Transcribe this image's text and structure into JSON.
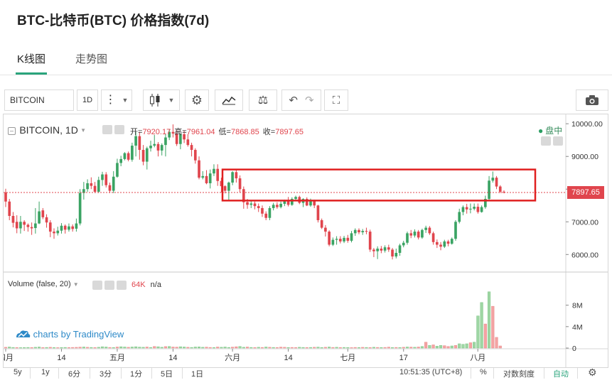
{
  "page": {
    "title": "BTC-比特币(BTC) 价格指数(7d)"
  },
  "tabs": [
    {
      "label": "K线图",
      "active": true
    },
    {
      "label": "走势图",
      "active": false
    }
  ],
  "toolbar": {
    "symbol": "BITCOIN",
    "interval": "1D"
  },
  "legend": {
    "symbol": "BITCOIN, 1D",
    "open_label": "开=",
    "open_value": "7920.17",
    "high_label": "高=",
    "high_value": "7961.04",
    "low_label": "低=",
    "low_value": "7868.85",
    "close_label": "收=",
    "close_value": "7897.65",
    "market_status": "盘中",
    "volume_label": "Volume (false, 20)",
    "volume_value": "64K",
    "volume_extra": "n/a"
  },
  "watermark": "charts by TradingView",
  "price_tag": "7897.65",
  "y_ticks": [
    "10000.00",
    "9000.00",
    "8000.00",
    "7000.00",
    "6000.00"
  ],
  "volume_ticks": [
    "8M",
    "4M",
    "0"
  ],
  "x_ticks": [
    "四月",
    "14",
    "五月",
    "14",
    "六月",
    "14",
    "七月",
    "17",
    "八月"
  ],
  "bottom_bar": {
    "ranges": [
      "5y",
      "1y",
      "6分",
      "3分",
      "1分",
      "5日",
      "1日"
    ],
    "time": "10:51:35 (UTC+8)",
    "percent": "%",
    "log_label": "对数刻度",
    "auto_label": "自动"
  },
  "colors": {
    "up": "#3aa363",
    "down": "#e0454d",
    "volume_up": "#9fd6a4",
    "volume_down": "#f4a3a3",
    "highlight": "#e02020",
    "accent": "#2aa47c"
  },
  "chart_data": {
    "type": "candlestick",
    "y_range": [
      5550,
      10200
    ],
    "candles": [
      [
        7900,
        7620,
        8010,
        7450
      ],
      [
        7620,
        7180,
        7700,
        7050
      ],
      [
        7180,
        6970,
        7300,
        6830
      ],
      [
        7000,
        6800,
        7200,
        6650
      ],
      [
        6800,
        7000,
        7180,
        6640
      ],
      [
        7000,
        6910,
        7050,
        6720
      ],
      [
        6910,
        6840,
        6950,
        6700
      ],
      [
        6840,
        6800,
        6980,
        6600
      ],
      [
        6810,
        6950,
        7420,
        6640
      ],
      [
        6950,
        7320,
        7620,
        6930
      ],
      [
        7350,
        7140,
        7420,
        7080
      ],
      [
        7140,
        6980,
        7230,
        6820
      ],
      [
        6980,
        6700,
        7050,
        6530
      ],
      [
        6700,
        6650,
        6800,
        6480
      ],
      [
        6650,
        6730,
        6850,
        6580
      ],
      [
        6730,
        6880,
        6960,
        6640
      ],
      [
        6880,
        6760,
        6920,
        6640
      ],
      [
        6760,
        6860,
        6950,
        6700
      ],
      [
        6860,
        6780,
        6920,
        6700
      ],
      [
        6790,
        6950,
        7100,
        6700
      ],
      [
        6950,
        7880,
        8000,
        6890
      ],
      [
        7880,
        8000,
        8220,
        7680
      ],
      [
        8000,
        8180,
        8300,
        7920
      ],
      [
        8180,
        8100,
        8360,
        8000
      ],
      [
        8100,
        7920,
        8220,
        7880
      ],
      [
        7920,
        8280,
        8380,
        7880
      ],
      [
        8280,
        8450,
        8530,
        8100
      ],
      [
        8450,
        8120,
        8520,
        8050
      ],
      [
        8120,
        7950,
        8200,
        7880
      ],
      [
        7950,
        8380,
        8550,
        7880
      ],
      [
        8380,
        8800,
        8930,
        8350
      ],
      [
        8800,
        8920,
        9020,
        8700
      ],
      [
        8920,
        9100,
        9130,
        8880
      ],
      [
        9100,
        8900,
        9150,
        8850
      ],
      [
        8900,
        9330,
        9420,
        8840
      ],
      [
        9330,
        9620,
        9750,
        9000
      ],
      [
        9620,
        9200,
        9750,
        8900
      ],
      [
        9200,
        8840,
        9350,
        8730
      ],
      [
        8840,
        9250,
        9300,
        8600
      ],
      [
        9250,
        9330,
        9480,
        9150
      ],
      [
        9330,
        9380,
        9660,
        9280
      ],
      [
        9380,
        9180,
        9440,
        9000
      ],
      [
        9180,
        9350,
        9400,
        9030
      ],
      [
        9350,
        9580,
        9700,
        9000
      ],
      [
        9580,
        9750,
        9820,
        9500
      ],
      [
        9750,
        9700,
        9980,
        9580
      ],
      [
        9700,
        9380,
        9800,
        9320
      ],
      [
        9380,
        9680,
        9700,
        9220
      ],
      [
        9680,
        9520,
        9800,
        9410
      ],
      [
        9520,
        9350,
        9680,
        9300
      ],
      [
        9350,
        9200,
        9420,
        9000
      ],
      [
        9200,
        8880,
        9250,
        8780
      ],
      [
        8880,
        8350,
        9000,
        8300
      ],
      [
        8350,
        8400,
        8550,
        8300
      ],
      [
        8400,
        8180,
        8580,
        8150
      ],
      [
        8180,
        8480,
        8600,
        8020
      ],
      [
        8480,
        8620,
        8760,
        8400
      ],
      [
        8620,
        8250,
        8760,
        8100
      ],
      [
        8250,
        8090,
        8350,
        7900
      ],
      [
        8090,
        7950,
        8120,
        7870
      ],
      [
        7950,
        8200,
        8230,
        7650
      ],
      [
        8200,
        8520,
        8550,
        8120
      ],
      [
        8520,
        8330,
        8620,
        8200
      ],
      [
        8330,
        8000,
        8420,
        7900
      ],
      [
        8000,
        7600,
        8080,
        7400
      ],
      [
        7600,
        7520,
        7700,
        7400
      ],
      [
        7520,
        7560,
        7660,
        7420
      ],
      [
        7560,
        7480,
        7620,
        7380
      ],
      [
        7480,
        7420,
        7560,
        7300
      ],
      [
        7420,
        7250,
        7500,
        7150
      ],
      [
        7250,
        7120,
        7320,
        7050
      ],
      [
        7120,
        7420,
        7480,
        7050
      ],
      [
        7420,
        7520,
        7580,
        7350
      ],
      [
        7520,
        7450,
        7600,
        7400
      ],
      [
        7450,
        7550,
        7620,
        7410
      ],
      [
        7550,
        7640,
        7680,
        7480
      ],
      [
        7640,
        7520,
        7760,
        7470
      ],
      [
        7520,
        7700,
        7750,
        7490
      ],
      [
        7700,
        7760,
        7800,
        7650
      ],
      [
        7760,
        7580,
        7800,
        7540
      ],
      [
        7580,
        7700,
        7720,
        7450
      ],
      [
        7700,
        7500,
        7750,
        7480
      ],
      [
        7500,
        7640,
        7710,
        7460
      ],
      [
        7640,
        7500,
        7680,
        7420
      ],
      [
        7500,
        7050,
        7520,
        6980
      ],
      [
        7050,
        6820,
        7100,
        6780
      ],
      [
        6820,
        6700,
        6900,
        6550
      ],
      [
        6700,
        6300,
        6740,
        6250
      ],
      [
        6300,
        6450,
        6520,
        6260
      ],
      [
        6450,
        6480,
        6560,
        6300
      ],
      [
        6480,
        6400,
        6560,
        6340
      ],
      [
        6400,
        6510,
        6570,
        6350
      ],
      [
        6510,
        6420,
        6600,
        6360
      ],
      [
        6420,
        6650,
        6720,
        6370
      ],
      [
        6650,
        6750,
        6800,
        6570
      ],
      [
        6750,
        6680,
        6800,
        6620
      ],
      [
        6680,
        6720,
        6780,
        6600
      ],
      [
        6720,
        6700,
        6820,
        6620
      ],
      [
        6700,
        6150,
        6760,
        6080
      ],
      [
        6150,
        6100,
        6200,
        5920
      ],
      [
        6100,
        6180,
        6250,
        5860
      ],
      [
        6180,
        6120,
        6260,
        6040
      ],
      [
        6120,
        6220,
        6280,
        6060
      ],
      [
        6220,
        6150,
        6300,
        6080
      ],
      [
        6150,
        5940,
        6200,
        5850
      ],
      [
        5940,
        6050,
        6180,
        5880
      ],
      [
        6050,
        6280,
        6330,
        5960
      ],
      [
        6280,
        6360,
        6420,
        6220
      ],
      [
        6360,
        6650,
        6700,
        6300
      ],
      [
        6650,
        6580,
        6750,
        6500
      ],
      [
        6580,
        6700,
        6770,
        6520
      ],
      [
        6700,
        6520,
        6750,
        6460
      ],
      [
        6520,
        6750,
        6790,
        6480
      ],
      [
        6750,
        6820,
        6880,
        6660
      ],
      [
        6820,
        6650,
        6870,
        6600
      ],
      [
        6650,
        6380,
        6700,
        6300
      ],
      [
        6380,
        6300,
        6460,
        6200
      ],
      [
        6300,
        6240,
        6380,
        6130
      ],
      [
        6240,
        6400,
        6450,
        6200
      ],
      [
        6400,
        6330,
        6450,
        6250
      ],
      [
        6330,
        6480,
        6520,
        6300
      ],
      [
        6480,
        7000,
        7050,
        6420
      ],
      [
        7000,
        7300,
        7400,
        6950
      ],
      [
        7300,
        7450,
        7500,
        7200
      ],
      [
        7450,
        7380,
        7550,
        7250
      ],
      [
        7380,
        7400,
        7560,
        7260
      ],
      [
        7400,
        7460,
        7560,
        7350
      ],
      [
        7460,
        7300,
        7560,
        7250
      ],
      [
        7300,
        7450,
        7500,
        7280
      ],
      [
        7450,
        7700,
        7800,
        7400
      ],
      [
        7700,
        8260,
        8400,
        7650
      ],
      [
        8260,
        8350,
        8540,
        8200
      ],
      [
        8350,
        8080,
        8400,
        8000
      ],
      [
        8080,
        7920,
        8120,
        7880
      ],
      [
        7920,
        7898,
        7961,
        7869
      ]
    ],
    "volumes": [
      [
        0.15,
        0
      ],
      [
        0.2,
        1
      ],
      [
        0.12,
        1
      ],
      [
        0.1,
        0
      ],
      [
        0.08,
        1
      ],
      [
        0.1,
        1
      ],
      [
        0.12,
        1
      ],
      [
        0.1,
        0
      ],
      [
        0.15,
        1
      ],
      [
        0.2,
        1
      ],
      [
        0.1,
        0
      ],
      [
        0.12,
        1
      ],
      [
        0.15,
        0
      ],
      [
        0.1,
        1
      ],
      [
        0.08,
        0
      ],
      [
        0.1,
        1
      ],
      [
        0.12,
        1
      ],
      [
        0.1,
        0
      ],
      [
        0.12,
        0
      ],
      [
        0.14,
        0
      ],
      [
        0.18,
        0
      ],
      [
        0.2,
        1
      ],
      [
        0.15,
        0
      ],
      [
        0.12,
        1
      ],
      [
        0.1,
        0
      ],
      [
        0.15,
        1
      ],
      [
        0.25,
        1
      ],
      [
        0.2,
        1
      ],
      [
        0.12,
        0
      ],
      [
        0.1,
        1
      ],
      [
        0.2,
        0
      ],
      [
        0.25,
        1
      ],
      [
        0.2,
        1
      ],
      [
        0.15,
        0
      ],
      [
        0.2,
        1
      ],
      [
        0.25,
        1
      ],
      [
        0.18,
        1
      ],
      [
        0.15,
        1
      ],
      [
        0.2,
        0
      ],
      [
        0.12,
        1
      ],
      [
        0.3,
        0
      ],
      [
        0.25,
        1
      ],
      [
        0.15,
        1
      ],
      [
        0.28,
        0
      ],
      [
        0.3,
        1
      ],
      [
        0.2,
        0
      ],
      [
        0.18,
        0
      ],
      [
        0.25,
        1
      ],
      [
        0.2,
        1
      ],
      [
        0.15,
        0
      ],
      [
        0.12,
        1
      ],
      [
        0.2,
        1
      ],
      [
        0.22,
        1
      ],
      [
        0.15,
        1
      ],
      [
        0.18,
        0
      ],
      [
        0.12,
        0
      ],
      [
        0.1,
        1
      ],
      [
        0.2,
        0
      ],
      [
        0.15,
        1
      ],
      [
        0.2,
        1
      ],
      [
        0.12,
        1
      ],
      [
        0.18,
        0
      ],
      [
        0.25,
        0
      ],
      [
        0.3,
        1
      ],
      [
        0.15,
        1
      ],
      [
        0.2,
        0
      ],
      [
        0.12,
        1
      ],
      [
        0.1,
        0
      ],
      [
        0.15,
        1
      ],
      [
        0.12,
        0
      ],
      [
        0.2,
        1
      ],
      [
        0.15,
        0
      ],
      [
        0.12,
        1
      ],
      [
        0.1,
        0
      ],
      [
        0.18,
        0
      ],
      [
        0.15,
        0
      ],
      [
        0.1,
        1
      ],
      [
        0.12,
        0
      ],
      [
        0.1,
        0
      ],
      [
        0.15,
        1
      ],
      [
        0.12,
        1
      ],
      [
        0.1,
        0
      ],
      [
        0.12,
        1
      ],
      [
        0.15,
        0
      ],
      [
        0.18,
        1
      ],
      [
        0.1,
        1
      ],
      [
        0.15,
        0
      ],
      [
        0.2,
        1
      ],
      [
        0.12,
        0
      ],
      [
        0.15,
        1
      ],
      [
        0.1,
        0
      ],
      [
        0.12,
        1
      ],
      [
        0.1,
        1
      ],
      [
        0.08,
        0
      ],
      [
        0.12,
        0
      ],
      [
        0.1,
        1
      ],
      [
        0.14,
        0
      ],
      [
        0.12,
        1
      ],
      [
        0.1,
        0
      ],
      [
        0.15,
        1
      ],
      [
        0.12,
        0
      ],
      [
        0.1,
        1
      ],
      [
        0.12,
        0
      ],
      [
        0.18,
        0
      ],
      [
        0.1,
        1
      ],
      [
        0.12,
        0
      ],
      [
        0.1,
        1
      ],
      [
        0.15,
        0
      ],
      [
        0.2,
        1
      ],
      [
        0.18,
        0
      ],
      [
        0.15,
        1
      ],
      [
        0.2,
        0
      ],
      [
        0.3,
        1
      ],
      [
        1.1,
        0
      ],
      [
        0.5,
        1
      ],
      [
        0.6,
        0
      ],
      [
        0.35,
        1
      ],
      [
        0.5,
        1
      ],
      [
        0.45,
        0
      ],
      [
        0.3,
        0
      ],
      [
        0.4,
        1
      ],
      [
        0.5,
        0
      ],
      [
        0.8,
        1
      ],
      [
        0.7,
        1
      ],
      [
        0.8,
        1
      ],
      [
        1.0,
        0
      ],
      [
        1.1,
        1
      ],
      [
        6.0,
        1
      ],
      [
        8.5,
        1
      ],
      [
        4.5,
        0
      ],
      [
        10.5,
        1
      ],
      [
        7.8,
        0
      ],
      [
        2.0,
        0
      ],
      [
        0.4,
        0
      ]
    ],
    "highlight_box": {
      "price_top": 8600,
      "price_bottom": 7650
    }
  }
}
